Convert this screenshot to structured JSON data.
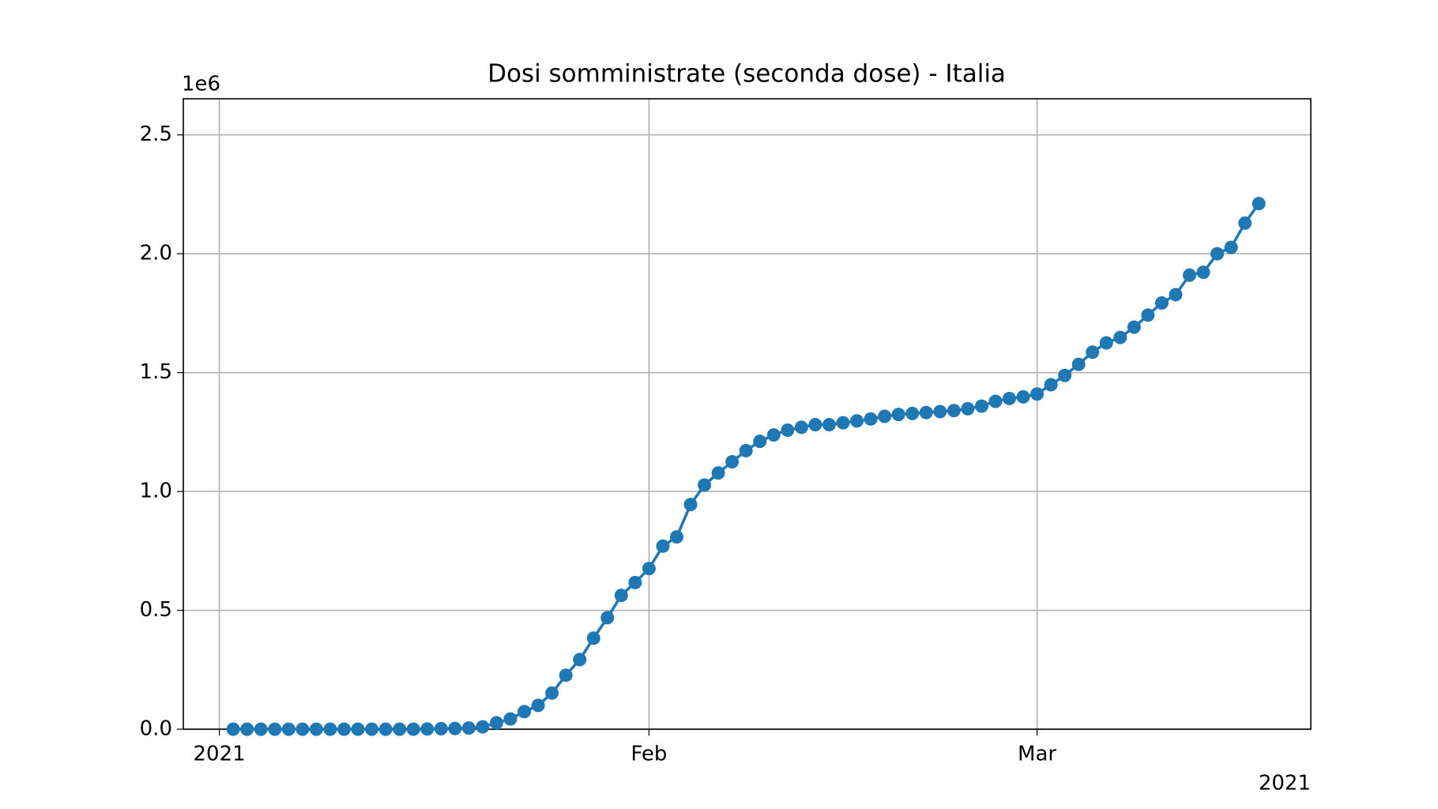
{
  "chart_data": {
    "type": "line",
    "title": "Dosi somministrate (seconda dose) - Italia",
    "x": [
      1,
      2,
      3,
      4,
      5,
      6,
      7,
      8,
      9,
      10,
      11,
      12,
      13,
      14,
      15,
      16,
      17,
      18,
      19,
      20,
      21,
      22,
      23,
      24,
      25,
      26,
      27,
      28,
      29,
      30,
      31,
      32,
      33,
      34,
      35,
      36,
      37,
      38,
      39,
      40,
      41,
      42,
      43,
      44,
      45,
      46,
      47,
      48,
      49,
      50,
      51,
      52,
      53,
      54,
      55,
      56,
      57,
      58,
      59,
      60,
      61,
      62,
      63,
      64,
      65,
      66,
      67,
      68,
      69,
      70,
      71,
      72,
      73,
      74,
      75
    ],
    "values": [
      0,
      0,
      0,
      0,
      0,
      0,
      0,
      0,
      0,
      0,
      0,
      0,
      0,
      0,
      0.001,
      0.002,
      0.003,
      0.005,
      0.01,
      0.027,
      0.043,
      0.074,
      0.1,
      0.152,
      0.227,
      0.293,
      0.383,
      0.469,
      0.563,
      0.617,
      0.676,
      0.77,
      0.809,
      0.945,
      1.027,
      1.078,
      1.125,
      1.172,
      1.211,
      1.238,
      1.258,
      1.27,
      1.281,
      1.281,
      1.289,
      1.297,
      1.305,
      1.316,
      1.324,
      1.328,
      1.332,
      1.336,
      1.34,
      1.348,
      1.359,
      1.379,
      1.391,
      1.398,
      1.41,
      1.449,
      1.488,
      1.535,
      1.586,
      1.625,
      1.648,
      1.691,
      1.742,
      1.793,
      1.828,
      1.91,
      1.922,
      2.0,
      2.027,
      2.129,
      2.211
    ],
    "color": "#1f77b4",
    "xlim": [
      -2.6,
      78.75
    ],
    "xticks": [
      {
        "value": 0,
        "label": "2021"
      },
      {
        "value": 31,
        "label": "Feb"
      },
      {
        "value": 59,
        "label": "Mar"
      }
    ],
    "x_offset_label": "2021",
    "ylim": [
      0,
      2.652
    ],
    "yticks": [
      {
        "value": 0,
        "label": "0.0"
      },
      {
        "value": 0.5,
        "label": "0.5"
      },
      {
        "value": 1,
        "label": "1.0"
      },
      {
        "value": 1.5,
        "label": "1.5"
      },
      {
        "value": 2,
        "label": "2.0"
      },
      {
        "value": 2.5,
        "label": "2.5"
      }
    ],
    "y_offset_label": "1e6",
    "grid": true
  }
}
